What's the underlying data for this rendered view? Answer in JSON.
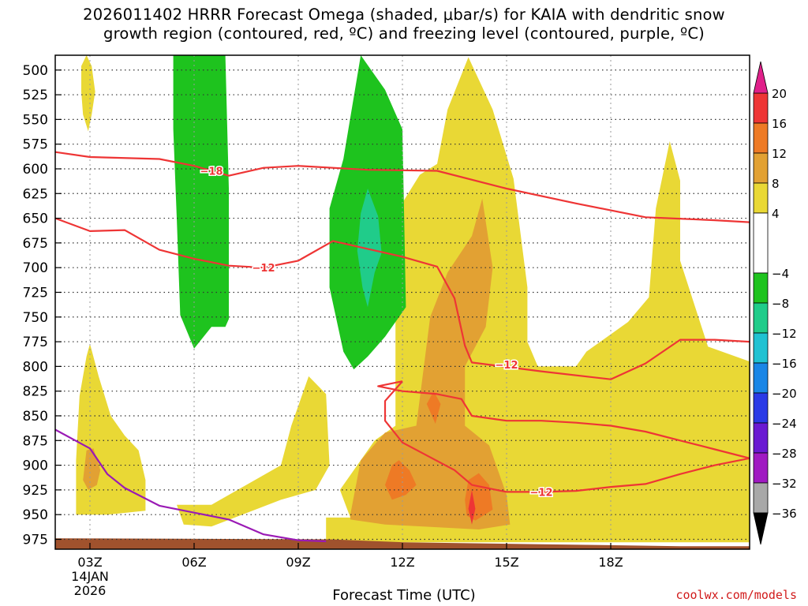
{
  "title_lines": [
    "2026011402 HRRR Forecast Omega (shaded, μbar/s) for KAIA with dendritic snow",
    "growth region (contoured, red, ºC) and freezing level (contoured, purple, ºC)"
  ],
  "credit": "coolwx.com/models",
  "chart_data": {
    "type": "contour",
    "title": "2026011402 HRRR Forecast Omega (shaded, μbar/s) for KAIA with dendritic snow growth region (contoured, red, ºC) and freezing level (contoured, purple, ºC)",
    "xlabel": "Forecast Time (UTC)",
    "ylabel": "",
    "xlim_hours": [
      2,
      22
    ],
    "ylim_hpa": [
      985,
      485
    ],
    "x_ticks": [
      {
        "hour": 3,
        "label": "03Z",
        "sub1": "14JAN",
        "sub2": "2026"
      },
      {
        "hour": 6,
        "label": "06Z"
      },
      {
        "hour": 9,
        "label": "09Z"
      },
      {
        "hour": 12,
        "label": "12Z"
      },
      {
        "hour": 15,
        "label": "15Z"
      },
      {
        "hour": 18,
        "label": "18Z"
      }
    ],
    "y_ticks": [
      500,
      525,
      550,
      575,
      600,
      625,
      650,
      675,
      700,
      725,
      750,
      775,
      800,
      825,
      850,
      875,
      900,
      925,
      950,
      975
    ],
    "colorbar": {
      "unit": "μbar/s",
      "labels": [
        "20",
        "16",
        "12",
        "8",
        "4",
        "−4",
        "−8",
        "−12",
        "−16",
        "−20",
        "−24",
        "−28",
        "−32",
        "−36"
      ],
      "segments": [
        {
          "from": 20,
          "to": 16,
          "color": "#ee3535"
        },
        {
          "from": 16,
          "to": 12,
          "color": "#ee7a25"
        },
        {
          "from": 12,
          "to": 8,
          "color": "#e2a133"
        },
        {
          "from": 8,
          "to": 4,
          "color": "#e9d835"
        },
        {
          "from": 4,
          "to": -4,
          "color": "#ffffff"
        },
        {
          "from": -4,
          "to": -8,
          "color": "#1ec31e"
        },
        {
          "from": -8,
          "to": -12,
          "color": "#20cc8a"
        },
        {
          "from": -12,
          "to": -16,
          "color": "#20c2d2"
        },
        {
          "from": -16,
          "to": -20,
          "color": "#1a86e6"
        },
        {
          "from": -20,
          "to": -24,
          "color": "#2a3ae6"
        },
        {
          "from": -24,
          "to": -28,
          "color": "#6a1ad2"
        },
        {
          "from": -28,
          "to": -32,
          "color": "#a01ac2"
        },
        {
          "from": -32,
          "to": -36,
          "color": "#a8a8a8"
        }
      ],
      "over_color": "#e0208a",
      "under_color": "#000000"
    },
    "series": [
      {
        "name": "−18 isotherm",
        "label": "−18",
        "color": "#ee3535",
        "x": [
          2,
          3,
          5,
          6,
          7,
          8,
          9,
          11,
          13,
          15,
          17,
          19,
          21,
          22
        ],
        "y": [
          583,
          588,
          590,
          597,
          607,
          599,
          597,
          601,
          602,
          620,
          635,
          649,
          652,
          654
        ]
      },
      {
        "name": "−12 isotherm upper branch",
        "label": "−12",
        "color": "#ee3535",
        "x": [
          2,
          3,
          4,
          5,
          6,
          7,
          8,
          9,
          10,
          11,
          12,
          13,
          13.5,
          13.8,
          14,
          16,
          18,
          19,
          20,
          21,
          22
        ],
        "y": [
          650,
          663,
          662,
          682,
          691,
          698,
          700,
          693,
          673,
          681,
          689,
          699,
          731,
          779,
          796,
          805,
          813,
          797,
          773,
          773,
          775
        ]
      },
      {
        "name": "−12 isotherm lower loop",
        "label": "−12",
        "color": "#ee3535",
        "x": [
          12,
          11.3,
          12,
          13,
          13.7,
          14,
          15,
          16,
          17,
          18,
          19,
          20,
          21,
          22,
          21,
          20,
          19,
          18,
          17,
          16,
          15,
          14,
          13.5,
          12,
          11.5,
          11.5,
          12
        ],
        "y": [
          815,
          820,
          825,
          828,
          833,
          850,
          855,
          855,
          857,
          860,
          866,
          875,
          884,
          893,
          900,
          909,
          919,
          922,
          926,
          927,
          927,
          920,
          905,
          877,
          855,
          835,
          815
        ]
      },
      {
        "name": "Freezing level",
        "label": "",
        "color": "#9a1ab5",
        "x": [
          2,
          3,
          3.5,
          4,
          5,
          6,
          7,
          8,
          9,
          9.8
        ],
        "y": [
          864,
          883,
          909,
          923,
          941,
          948,
          955,
          970,
          976,
          977
        ]
      }
    ],
    "terrain": {
      "color": "#a0522d",
      "surface_hpa": [
        {
          "hour": 2,
          "p": 974
        },
        {
          "hour": 9.9,
          "p": 975
        },
        {
          "hour": 12,
          "p": 978
        },
        {
          "hour": 16,
          "p": 980
        },
        {
          "hour": 20,
          "p": 982
        },
        {
          "hour": 22,
          "p": 982
        }
      ]
    },
    "shaded_regions": [
      {
        "level": "4..8",
        "color": "#e9d835",
        "polygons": [
          [
            [
              2.75,
              496
            ],
            [
              2.75,
              522
            ],
            [
              2.8,
              545
            ],
            [
              2.95,
              562
            ],
            [
              3.05,
              545
            ],
            [
              3.15,
              522
            ],
            [
              3.05,
              496
            ],
            [
              2.9,
              485
            ]
          ],
          [
            [
              2.6,
              895
            ],
            [
              2.7,
              830
            ],
            [
              2.9,
              790
            ],
            [
              3.0,
              777
            ],
            [
              3.25,
              810
            ],
            [
              3.6,
              850
            ],
            [
              4.0,
              870
            ],
            [
              4.4,
              885
            ],
            [
              4.6,
              915
            ],
            [
              4.6,
              946
            ],
            [
              3.5,
              950
            ],
            [
              2.6,
              950
            ]
          ],
          [
            [
              5.5,
              940
            ],
            [
              6.5,
              940
            ],
            [
              8.5,
              900
            ],
            [
              8.8,
              860
            ],
            [
              9.3,
              810
            ],
            [
              9.8,
              828
            ],
            [
              9.9,
              900
            ],
            [
              9.5,
              925
            ],
            [
              8.5,
              935
            ],
            [
              6.5,
              962
            ],
            [
              5.7,
              960
            ]
          ],
          [
            [
              9.8,
              975
            ],
            [
              9.8,
              953
            ],
            [
              10.5,
              953
            ],
            [
              10.2,
              925
            ],
            [
              11.2,
              875
            ],
            [
              11.8,
              860
            ],
            [
              11.8,
              700
            ],
            [
              11.9,
              640
            ],
            [
              12.5,
              606
            ],
            [
              13.0,
              595
            ],
            [
              13.3,
              540
            ],
            [
              13.9,
              487
            ],
            [
              14.6,
              540
            ],
            [
              15.2,
              610
            ],
            [
              15.6,
              720
            ],
            [
              15.6,
              775
            ],
            [
              15.9,
              800
            ],
            [
              17.0,
              800
            ],
            [
              17.3,
              785
            ],
            [
              18.5,
              755
            ],
            [
              19.1,
              730
            ],
            [
              19.3,
              640
            ],
            [
              19.7,
              572
            ],
            [
              20.0,
              612
            ],
            [
              20.0,
              693
            ],
            [
              20.8,
              780
            ],
            [
              22.0,
              795
            ],
            [
              22.0,
              978
            ],
            [
              9.8,
              978
            ]
          ]
        ]
      },
      {
        "level": "8..12",
        "color": "#e2a133",
        "polygons": [
          [
            [
              2.8,
              915
            ],
            [
              2.9,
              885
            ],
            [
              3.1,
              883
            ],
            [
              3.3,
              905
            ],
            [
              3.2,
              920
            ],
            [
              2.95,
              925
            ]
          ],
          [
            [
              10.5,
              950
            ],
            [
              10.8,
              895
            ],
            [
              11.5,
              867
            ],
            [
              12.4,
              860
            ],
            [
              12.8,
              750
            ],
            [
              13.3,
              705
            ],
            [
              14.0,
              668
            ],
            [
              14.3,
              630
            ],
            [
              14.6,
              700
            ],
            [
              14.4,
              760
            ],
            [
              13.8,
              800
            ],
            [
              13.8,
              860
            ],
            [
              14.5,
              880
            ],
            [
              15.0,
              930
            ],
            [
              15.1,
              960
            ],
            [
              14.2,
              965
            ],
            [
              11.5,
              960
            ],
            [
              10.5,
              955
            ]
          ]
        ]
      },
      {
        "level": "12..16",
        "color": "#ee7a25",
        "polygons": [
          [
            [
              11.5,
              920
            ],
            [
              11.7,
              900
            ],
            [
              11.9,
              895
            ],
            [
              12.2,
              905
            ],
            [
              12.4,
              920
            ],
            [
              12.1,
              930
            ],
            [
              11.7,
              935
            ]
          ],
          [
            [
              12.7,
              838
            ],
            [
              12.9,
              825
            ],
            [
              13.1,
              838
            ],
            [
              12.95,
              858
            ]
          ],
          [
            [
              13.8,
              935
            ],
            [
              13.9,
              915
            ],
            [
              14.2,
              908
            ],
            [
              14.5,
              920
            ],
            [
              14.6,
              945
            ],
            [
              14.1,
              956
            ],
            [
              13.85,
              951
            ]
          ]
        ]
      },
      {
        "level": "16..20",
        "color": "#ee3535",
        "polygons": [
          [
            [
              13.9,
              944
            ],
            [
              14.0,
              925
            ],
            [
              14.1,
              944
            ],
            [
              14.0,
              960
            ]
          ]
        ]
      },
      {
        "level": "-8..-4",
        "color": "#1ec31e",
        "polygons": [
          [
            [
              5.4,
              485
            ],
            [
              6.9,
              485
            ],
            [
              7.0,
              620
            ],
            [
              7.0,
              752
            ],
            [
              6.9,
              760
            ],
            [
              6.5,
              760
            ],
            [
              6.0,
              782
            ],
            [
              5.6,
              748
            ],
            [
              5.5,
              650
            ],
            [
              5.4,
              560
            ]
          ],
          [
            [
              9.9,
              720
            ],
            [
              9.9,
              640
            ],
            [
              10.3,
              590
            ],
            [
              10.8,
              485
            ],
            [
              11.5,
              520
            ],
            [
              12.0,
              560
            ],
            [
              12.1,
              740
            ],
            [
              11.5,
              770
            ],
            [
              11.0,
              790
            ],
            [
              10.6,
              803
            ],
            [
              10.3,
              785
            ]
          ]
        ]
      },
      {
        "level": "-12..-8",
        "color": "#20cc8a",
        "polygons": [
          [
            [
              10.7,
              683
            ],
            [
              10.8,
              645
            ],
            [
              11.0,
              620
            ],
            [
              11.3,
              648
            ],
            [
              11.4,
              685
            ],
            [
              11.2,
              705
            ],
            [
              11.0,
              740
            ],
            [
              10.85,
              720
            ]
          ]
        ]
      }
    ]
  }
}
